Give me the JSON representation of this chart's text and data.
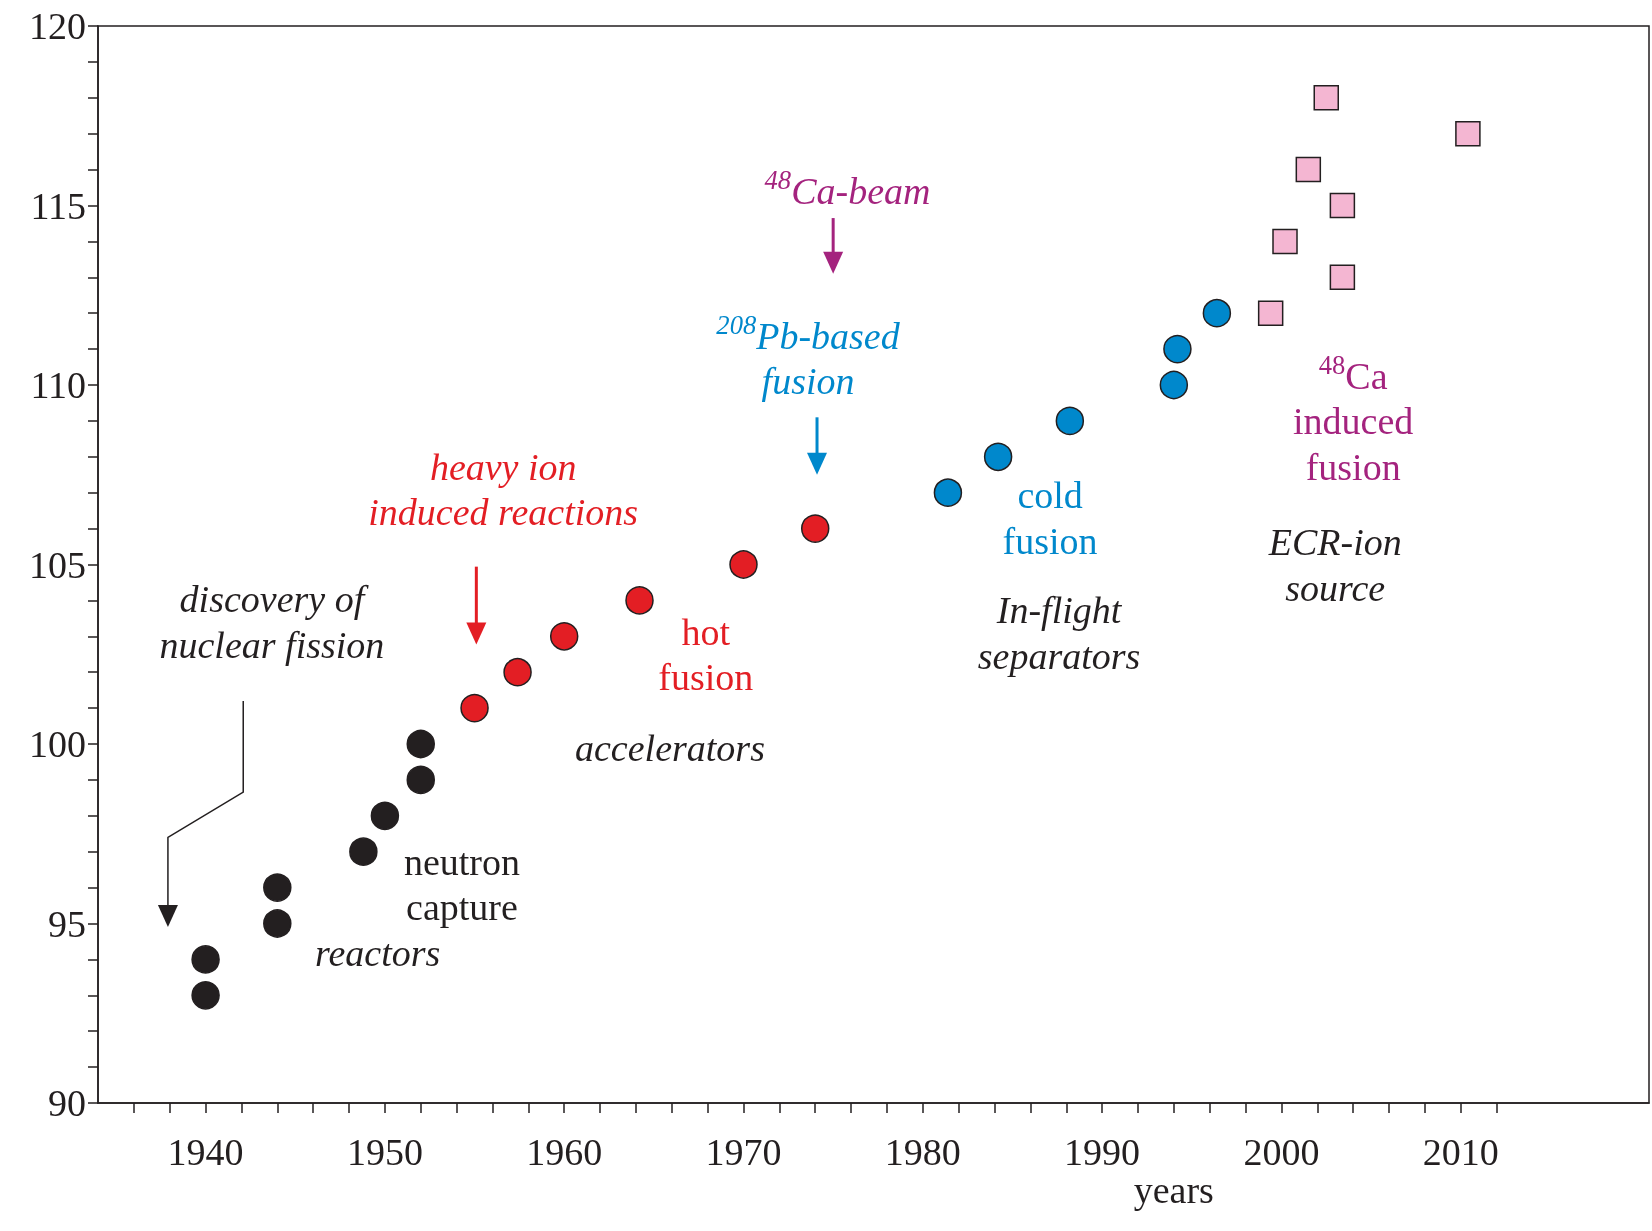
{
  "chart_data": {
    "type": "scatter",
    "xlabel": "years",
    "xlim": [
      1934,
      2020.5
    ],
    "ylim": [
      90,
      120
    ],
    "xticks": [
      {
        "value": 1936,
        "label": null
      },
      {
        "value": 1938,
        "label": null
      },
      1940,
      {
        "value": 1942,
        "label": null
      },
      {
        "value": 1944,
        "label": null
      },
      {
        "value": 1946,
        "label": null
      },
      {
        "value": 1948,
        "label": null
      },
      1950,
      {
        "value": 1952,
        "label": null
      },
      {
        "value": 1954,
        "label": null
      },
      {
        "value": 1956,
        "label": null
      },
      {
        "value": 1958,
        "label": null
      },
      1960,
      {
        "value": 1962,
        "label": null
      },
      {
        "value": 1964,
        "label": null
      },
      {
        "value": 1966,
        "label": null
      },
      {
        "value": 1968,
        "label": null
      },
      1970,
      {
        "value": 1972,
        "label": null
      },
      {
        "value": 1974,
        "label": null
      },
      {
        "value": 1976,
        "label": null
      },
      {
        "value": 1978,
        "label": null
      },
      1980,
      {
        "value": 1982,
        "label": null
      },
      {
        "value": 1984,
        "label": null
      },
      {
        "value": 1986,
        "label": null
      },
      {
        "value": 1988,
        "label": null
      },
      1990,
      {
        "value": 1992,
        "label": null
      },
      {
        "value": 1994,
        "label": null
      },
      {
        "value": 1996,
        "label": null
      },
      {
        "value": 1998,
        "label": null
      },
      2000,
      {
        "value": 2002,
        "label": null
      },
      {
        "value": 2004,
        "label": null
      },
      {
        "value": 2006,
        "label": null
      },
      {
        "value": 2008,
        "label": null
      },
      2010,
      {
        "value": 2012,
        "label": null
      }
    ],
    "yticks": [
      90,
      {
        "value": 91,
        "label": null
      },
      {
        "value": 92,
        "label": null
      },
      {
        "value": 93,
        "label": null
      },
      {
        "value": 94,
        "label": null
      },
      95,
      {
        "value": 96,
        "label": null
      },
      {
        "value": 97,
        "label": null
      },
      {
        "value": 98,
        "label": null
      },
      {
        "value": 99,
        "label": null
      },
      100,
      {
        "value": 101,
        "label": null
      },
      {
        "value": 102,
        "label": null
      },
      {
        "value": 103,
        "label": null
      },
      {
        "value": 104,
        "label": null
      },
      105,
      {
        "value": 106,
        "label": null
      },
      {
        "value": 107,
        "label": null
      },
      {
        "value": 108,
        "label": null
      },
      {
        "value": 109,
        "label": null
      },
      110,
      {
        "value": 111,
        "label": null
      },
      {
        "value": 112,
        "label": null
      },
      {
        "value": 113,
        "label": null
      },
      {
        "value": 114,
        "label": null
      },
      115,
      {
        "value": 116,
        "label": null
      },
      {
        "value": 117,
        "label": null
      },
      {
        "value": 118,
        "label": null
      },
      {
        "value": 119,
        "label": null
      },
      120
    ],
    "series": [
      {
        "color": "#231f20",
        "marker": "circle",
        "x": [
          1940,
          1940,
          1944,
          1944,
          1948.8,
          1950,
          1952,
          1952
        ],
        "values": [
          93,
          94,
          95,
          96,
          97,
          98,
          99,
          100
        ]
      },
      {
        "color": "#e31e24",
        "marker": "circle",
        "x": [
          1955,
          1957.4,
          1960,
          1964.2,
          1970,
          1974
        ],
        "values": [
          101,
          102,
          103,
          104,
          105,
          106
        ]
      },
      {
        "color": "#0088cc",
        "marker": "circle",
        "x": [
          1981.4,
          1984.2,
          1988.2,
          1994,
          1994.2,
          1996.4
        ],
        "values": [
          107,
          108,
          109,
          110,
          111,
          112
        ]
      },
      {
        "color": "#f4b6d2",
        "marker": "square",
        "x": [
          1999.4,
          2000.2,
          2003.4,
          2003.4,
          2001.5,
          2002.5,
          2010.4
        ],
        "values": [
          112,
          114,
          113,
          115,
          116,
          118,
          117
        ]
      }
    ],
    "annotations": [
      "discovery of nuclear fission",
      "reactors",
      "neutron capture",
      "heavy ion induced reactions",
      "hot fusion",
      "accelerators",
      "$^{48}$Ca-beam",
      "$^{208}$Pb-based fusion",
      "cold fusion",
      "In-flight separators",
      "$^{48}$Ca induced fusion",
      "ECR-ion source"
    ]
  }
}
